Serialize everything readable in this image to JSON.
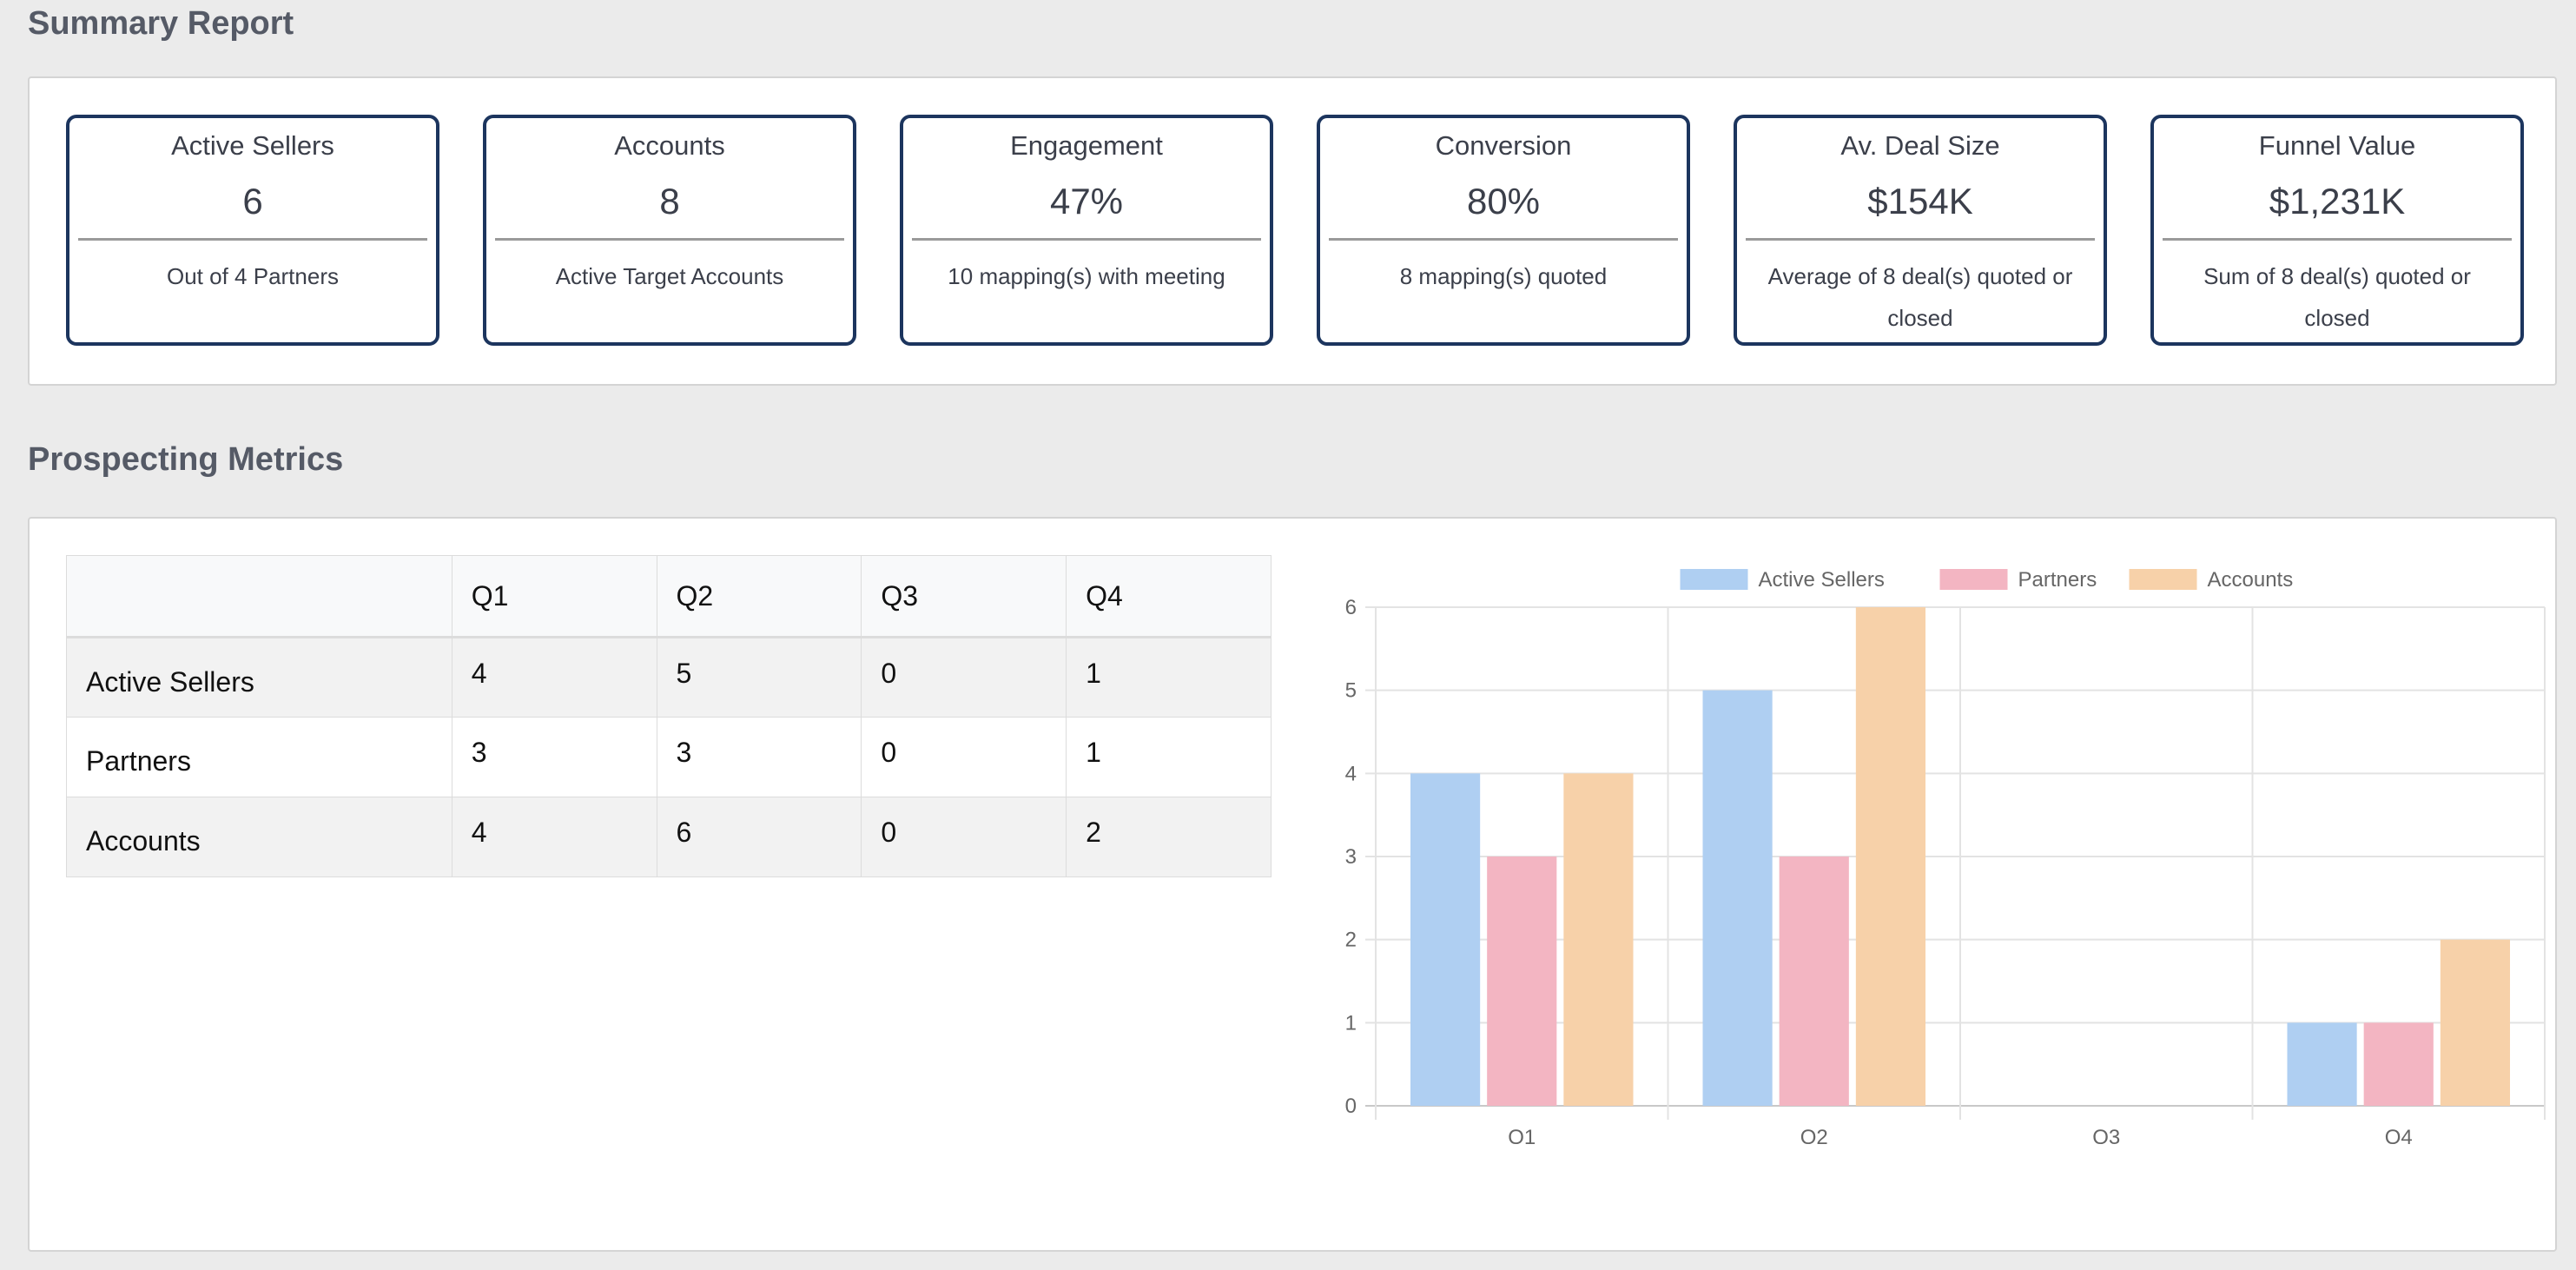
{
  "summary": {
    "title": "Summary Report",
    "cards": [
      {
        "title": "Active Sellers",
        "value": "6",
        "note": "Out of 4 Partners"
      },
      {
        "title": "Accounts",
        "value": "8",
        "note": "Active Target Accounts"
      },
      {
        "title": "Engagement",
        "value": "47%",
        "note": "10 mapping(s) with meeting"
      },
      {
        "title": "Conversion",
        "value": "80%",
        "note": "8 mapping(s) quoted"
      },
      {
        "title": "Av. Deal Size",
        "value": "$154K",
        "note": "Average of 8 deal(s) quoted or closed"
      },
      {
        "title": "Funnel Value",
        "value": "$1,231K",
        "note": "Sum of 8 deal(s) quoted or closed"
      }
    ]
  },
  "prospecting": {
    "title": "Prospecting Metrics",
    "table": {
      "headers": [
        "",
        "Q1",
        "Q2",
        "Q3",
        "Q4"
      ],
      "rows": [
        {
          "label": "Active Sellers",
          "values": [
            "4",
            "5",
            "0",
            "1"
          ]
        },
        {
          "label": "Partners",
          "values": [
            "3",
            "3",
            "0",
            "1"
          ]
        },
        {
          "label": "Accounts",
          "values": [
            "4",
            "6",
            "0",
            "2"
          ]
        }
      ]
    }
  },
  "chart_data": {
    "type": "bar",
    "categories": [
      "Q1",
      "Q2",
      "Q3",
      "Q4"
    ],
    "series": [
      {
        "name": "Active Sellers",
        "values": [
          4,
          5,
          0,
          1
        ],
        "color": "#afcff2",
        "colorName": "light blue"
      },
      {
        "name": "Partners",
        "values": [
          3,
          3,
          0,
          1
        ],
        "color": "#f3b5c2",
        "colorName": "light pink"
      },
      {
        "name": "Accounts",
        "values": [
          4,
          6,
          0,
          2
        ],
        "color": "#f7d1a9",
        "colorName": "light orange"
      }
    ],
    "ylim": [
      0,
      6
    ],
    "yticks": [
      "0",
      "1",
      "2",
      "3",
      "4",
      "5",
      "6"
    ],
    "grid": true,
    "legend": "top-center",
    "title": "",
    "xlabel": "",
    "ylabel": ""
  }
}
